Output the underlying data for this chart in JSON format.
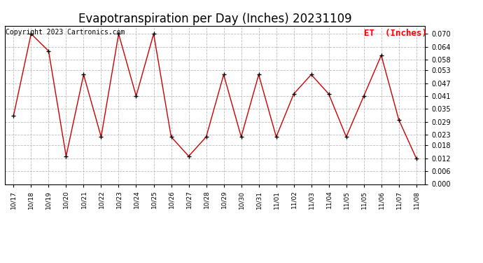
{
  "title": "Evapotranspiration per Day (Inches) 20231109",
  "legend_label": "ET  (Inches)",
  "copyright": "Copyright 2023 Cartronics.com",
  "x_labels": [
    "10/17",
    "10/18",
    "10/19",
    "10/20",
    "10/21",
    "10/22",
    "10/23",
    "10/24",
    "10/25",
    "10/26",
    "10/27",
    "10/28",
    "10/29",
    "10/30",
    "10/31",
    "11/01",
    "11/02",
    "11/03",
    "11/04",
    "11/05",
    "11/05",
    "11/06",
    "11/07",
    "11/08"
  ],
  "values": [
    0.032,
    0.07,
    0.062,
    0.013,
    0.051,
    0.022,
    0.07,
    0.041,
    0.07,
    0.022,
    0.013,
    0.022,
    0.051,
    0.022,
    0.051,
    0.022,
    0.042,
    0.051,
    0.042,
    0.022,
    0.041,
    0.06,
    0.03,
    0.012
  ],
  "line_color": "#cc0000",
  "marker_color": "#000000",
  "background_color": "#ffffff",
  "grid_color": "#bbbbbb",
  "ylim": [
    0.0,
    0.0735
  ],
  "yticks": [
    0.0,
    0.006,
    0.012,
    0.018,
    0.023,
    0.029,
    0.035,
    0.041,
    0.047,
    0.053,
    0.058,
    0.064,
    0.07
  ],
  "title_fontsize": 12,
  "copyright_fontsize": 7,
  "legend_fontsize": 9
}
